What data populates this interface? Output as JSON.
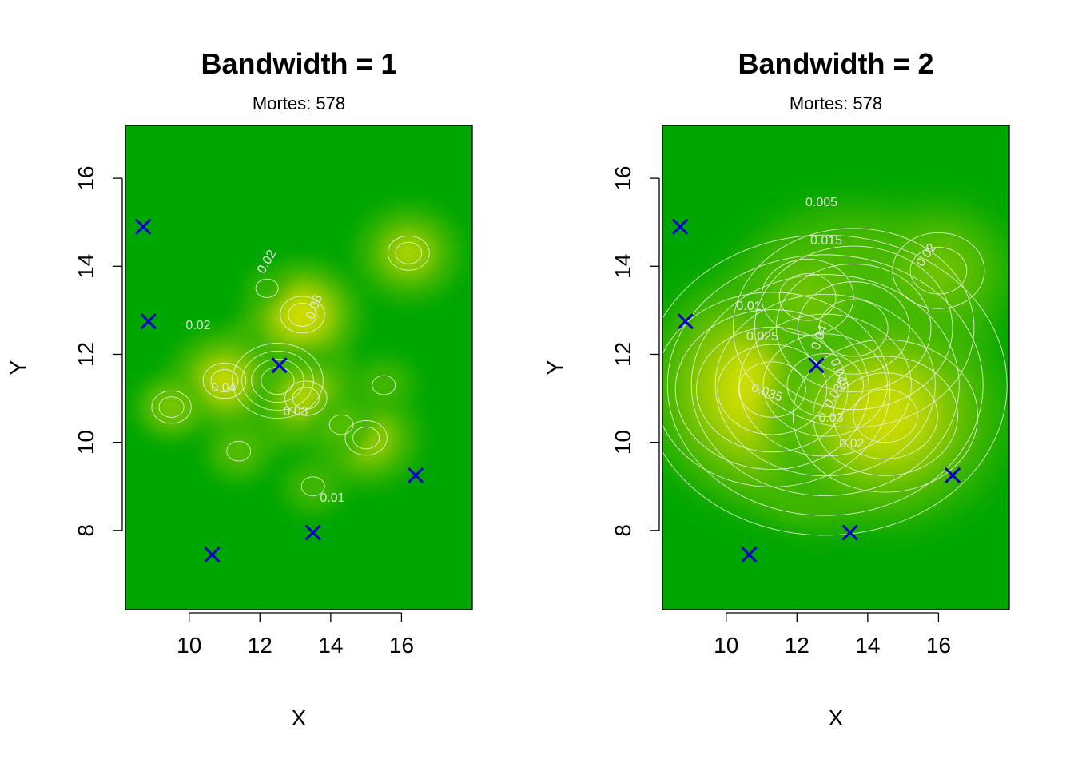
{
  "chart_data": [
    {
      "type": "heatmap",
      "title": "Bandwidth = 1",
      "subtitle": "Mortes: 578",
      "xlabel": "X",
      "ylabel": "Y",
      "xlim": [
        8.2,
        18.0
      ],
      "ylim": [
        6.2,
        17.2
      ],
      "x_ticks": [
        10,
        12,
        14,
        16
      ],
      "y_ticks": [
        8,
        10,
        12,
        14,
        16
      ],
      "background_color": "#00a600",
      "palette": [
        "#00a600",
        "#3ab500",
        "#8ec500",
        "#e6e600",
        "#e8c37a",
        "#f2f2f2"
      ],
      "density_peaks": [
        {
          "x": 12.5,
          "y": 11.4,
          "level": 1.0
        },
        {
          "x": 13.2,
          "y": 12.9,
          "level": 0.62
        },
        {
          "x": 11.0,
          "y": 11.4,
          "level": 0.55
        },
        {
          "x": 15.0,
          "y": 10.1,
          "level": 0.5
        },
        {
          "x": 13.3,
          "y": 11.0,
          "level": 0.5
        },
        {
          "x": 16.2,
          "y": 14.3,
          "level": 0.48
        },
        {
          "x": 9.5,
          "y": 10.8,
          "level": 0.38
        },
        {
          "x": 11.4,
          "y": 9.8,
          "level": 0.3
        },
        {
          "x": 13.5,
          "y": 9.0,
          "level": 0.25
        },
        {
          "x": 14.3,
          "y": 10.4,
          "level": 0.3
        },
        {
          "x": 12.2,
          "y": 13.5,
          "level": 0.2
        },
        {
          "x": 15.5,
          "y": 11.3,
          "level": 0.25
        }
      ],
      "contour_labels": [
        "0.02",
        "0.06",
        "0.02",
        "0.04",
        "0.03",
        "0.01"
      ],
      "pumps": [
        {
          "x": 8.7,
          "y": 14.9
        },
        {
          "x": 8.85,
          "y": 12.75
        },
        {
          "x": 10.65,
          "y": 7.45
        },
        {
          "x": 12.55,
          "y": 11.75
        },
        {
          "x": 13.5,
          "y": 7.95
        },
        {
          "x": 16.4,
          "y": 9.25
        }
      ]
    },
    {
      "type": "heatmap",
      "title": "Bandwidth = 2",
      "subtitle": "Mortes: 578",
      "xlabel": "X",
      "ylabel": "Y",
      "xlim": [
        8.2,
        18.0
      ],
      "ylim": [
        6.2,
        17.2
      ],
      "x_ticks": [
        10,
        12,
        14,
        16
      ],
      "y_ticks": [
        8,
        10,
        12,
        14,
        16
      ],
      "background_color": "#00a600",
      "palette": [
        "#00a600",
        "#3ab500",
        "#8ec500",
        "#e6e600",
        "#e8c37a",
        "#f2f2f2"
      ],
      "density_peaks": [
        {
          "x": 12.8,
          "y": 11.3,
          "level": 1.0
        },
        {
          "x": 13.6,
          "y": 12.6,
          "level": 0.75
        },
        {
          "x": 11.3,
          "y": 11.2,
          "level": 0.7
        },
        {
          "x": 14.5,
          "y": 10.6,
          "level": 0.6
        },
        {
          "x": 16.0,
          "y": 13.9,
          "level": 0.35
        },
        {
          "x": 12.3,
          "y": 13.3,
          "level": 0.35
        }
      ],
      "contour_labels": [
        "0.005",
        "0.015",
        "0.02",
        "0.01",
        "0.025",
        "0.04",
        "0.035",
        "0.045",
        "0.035",
        "0.03",
        "0.02"
      ],
      "pumps": [
        {
          "x": 8.7,
          "y": 14.9
        },
        {
          "x": 8.85,
          "y": 12.75
        },
        {
          "x": 10.65,
          "y": 7.45
        },
        {
          "x": 12.55,
          "y": 11.75
        },
        {
          "x": 13.5,
          "y": 7.95
        },
        {
          "x": 16.4,
          "y": 9.25
        }
      ]
    }
  ]
}
